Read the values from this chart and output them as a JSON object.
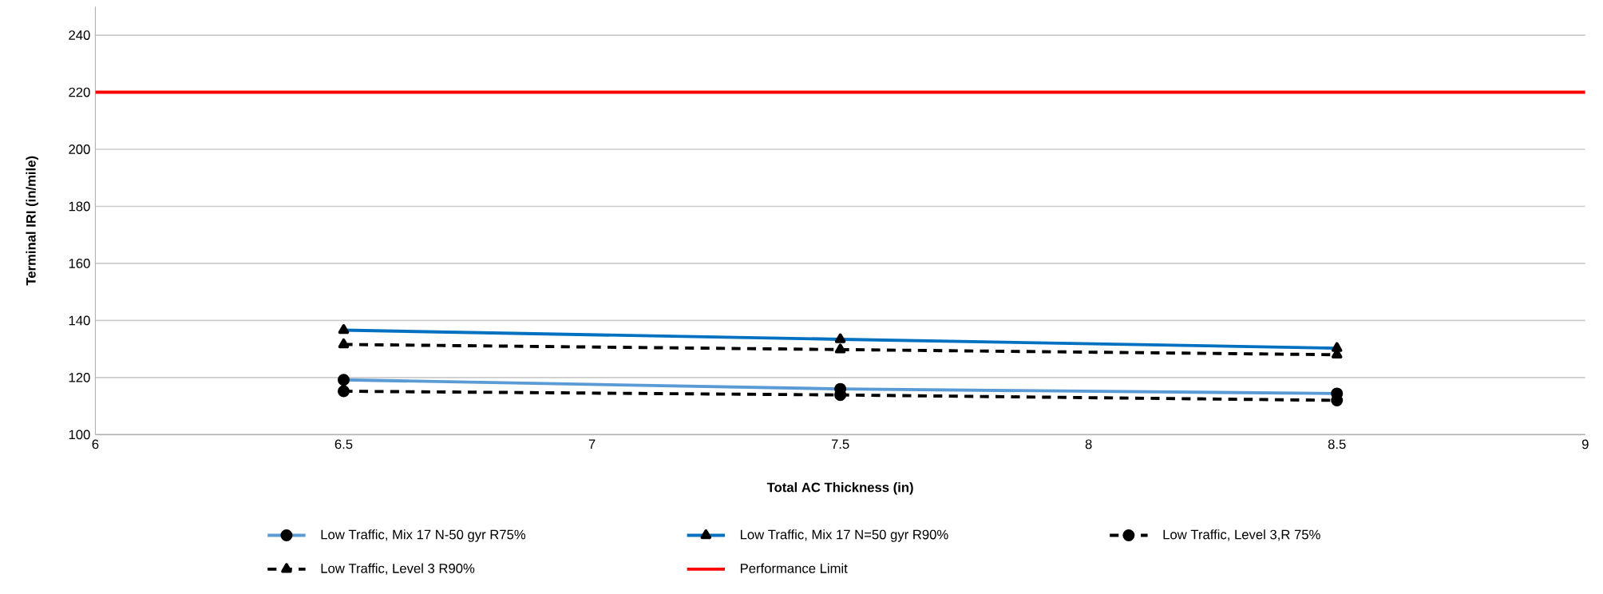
{
  "chart_data": {
    "type": "line",
    "xlabel": "Total AC Thickness (in)",
    "ylabel": "Terminal IRI (in/mile)",
    "x": [
      6.5,
      7.5,
      8.5
    ],
    "xlim": [
      6,
      9
    ],
    "xticks": [
      6,
      6.5,
      7,
      7.5,
      8,
      8.5,
      9
    ],
    "ylim": [
      100,
      250
    ],
    "yticks": [
      100,
      120,
      140,
      160,
      180,
      200,
      220,
      240
    ],
    "grid": "y",
    "legend": "bottom",
    "series": [
      {
        "name": "Low Traffic, Mix 17 N-50 gyr R75%",
        "color": "#5b9bd5",
        "marker": "circle",
        "line_style": "solid",
        "values": [
          119.2,
          116,
          114.4
        ]
      },
      {
        "name": "Low Traffic, Mix 17 N=50 gyr R90%",
        "color": "#0070c0",
        "marker": "triangle",
        "line_style": "solid",
        "values": [
          136.6,
          133.4,
          130.3
        ]
      },
      {
        "name": "Low Traffic, Level 3,R 75%",
        "color": "#000000",
        "marker": "circle",
        "line_style": "dashed",
        "values": [
          115.2,
          113.9,
          112
        ]
      },
      {
        "name": "Low Traffic, Level 3 R90%",
        "color": "#000000",
        "marker": "triangle",
        "line_style": "dashed",
        "values": [
          131.6,
          129.8,
          128
        ]
      },
      {
        "name": "Performance Limit",
        "color": "#ff0000",
        "marker": "none",
        "line_style": "solid",
        "x": [
          6,
          9
        ],
        "values": [
          220,
          220
        ]
      }
    ]
  }
}
